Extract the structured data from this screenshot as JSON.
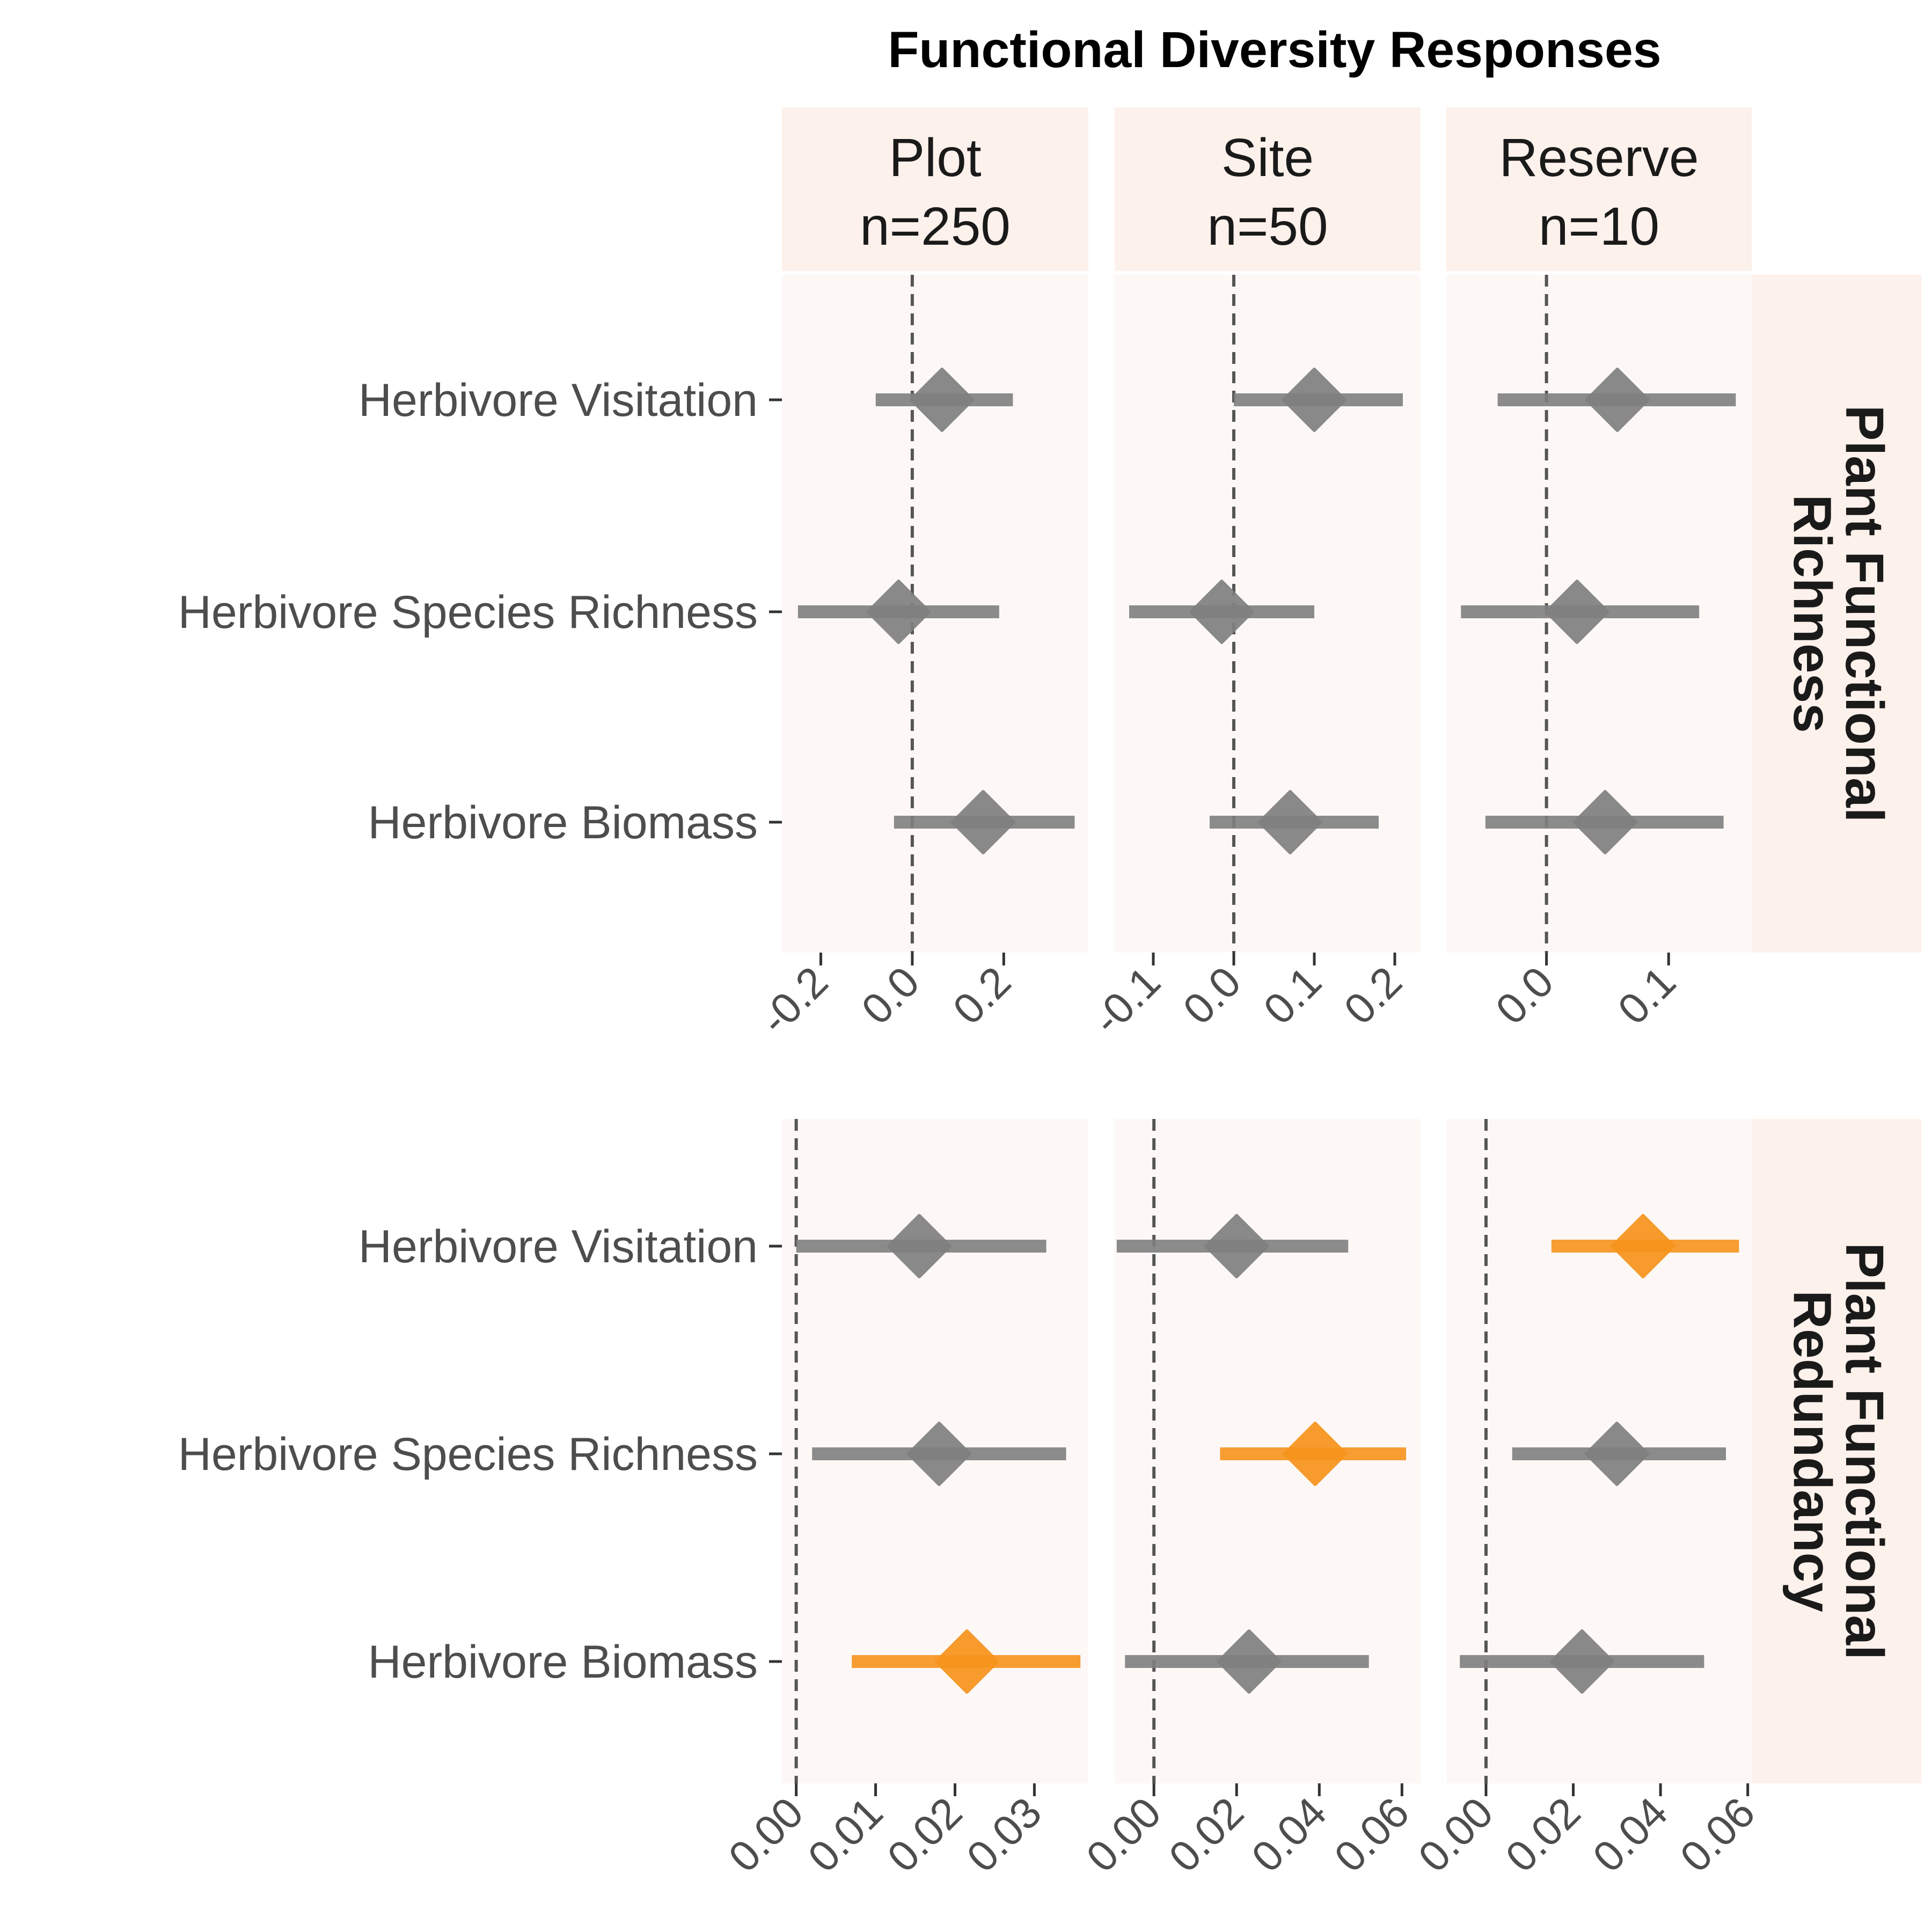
{
  "chart_data": {
    "type": "forest",
    "title": "Functional Diversity Responses",
    "columns": [
      {
        "label": "Plot",
        "n": "n=250"
      },
      {
        "label": "Site",
        "n": "n=50"
      },
      {
        "label": "Reserve",
        "n": "n=10"
      }
    ],
    "rows": [
      {
        "label": "Plant Functional Richness"
      },
      {
        "label": "Plant Functional Redundancy"
      }
    ],
    "categories": [
      "Herbivore Visitation",
      "Herbivore Species Richness",
      "Herbivore Biomass"
    ],
    "reference_line": 0,
    "colors": {
      "nonsignificant": "#808080",
      "significant": "#f7941d",
      "panel_bg": "#fdf8f6",
      "strip_bg": "#fdf1eb",
      "reference": "#555555"
    },
    "panels": [
      {
        "row": 0,
        "col": 0,
        "xlim": [
          -0.285,
          0.385
        ],
        "ticks": [
          -0.2,
          0.0,
          0.2
        ],
        "tick_labels": [
          "-0.2",
          "0.0",
          "0.2"
        ],
        "points": [
          {
            "category": "Herbivore Visitation",
            "estimate": 0.065,
            "lower": -0.08,
            "upper": 0.22,
            "significant": false
          },
          {
            "category": "Herbivore Species Richness",
            "estimate": -0.03,
            "lower": -0.25,
            "upper": 0.19,
            "significant": false
          },
          {
            "category": "Herbivore Biomass",
            "estimate": 0.155,
            "lower": -0.04,
            "upper": 0.355,
            "significant": false
          }
        ]
      },
      {
        "row": 0,
        "col": 1,
        "xlim": [
          -0.148,
          0.232
        ],
        "ticks": [
          -0.1,
          0.0,
          0.1,
          0.2
        ],
        "tick_labels": [
          "-0.1",
          "0.0",
          "0.1",
          "0.2"
        ],
        "points": [
          {
            "category": "Herbivore Visitation",
            "estimate": 0.1,
            "lower": 0.0,
            "upper": 0.21,
            "significant": false
          },
          {
            "category": "Herbivore Species Richness",
            "estimate": -0.015,
            "lower": -0.13,
            "upper": 0.1,
            "significant": false
          },
          {
            "category": "Herbivore Biomass",
            "estimate": 0.07,
            "lower": -0.03,
            "upper": 0.18,
            "significant": false
          }
        ]
      },
      {
        "row": 0,
        "col": 2,
        "xlim": [
          -0.082,
          0.168
        ],
        "ticks": [
          0.0,
          0.1
        ],
        "tick_labels": [
          "0.0",
          "0.1"
        ],
        "points": [
          {
            "category": "Herbivore Visitation",
            "estimate": 0.058,
            "lower": -0.04,
            "upper": 0.155,
            "significant": false
          },
          {
            "category": "Herbivore Species Richness",
            "estimate": 0.025,
            "lower": -0.07,
            "upper": 0.125,
            "significant": false
          },
          {
            "category": "Herbivore Biomass",
            "estimate": 0.048,
            "lower": -0.05,
            "upper": 0.145,
            "significant": false
          }
        ]
      },
      {
        "row": 1,
        "col": 0,
        "xlim": [
          -0.0018,
          0.0368
        ],
        "ticks": [
          0.0,
          0.01,
          0.02,
          0.03
        ],
        "tick_labels": [
          "0.00",
          "0.01",
          "0.02",
          "0.03"
        ],
        "points": [
          {
            "category": "Herbivore Visitation",
            "estimate": 0.0155,
            "lower": 0.0,
            "upper": 0.0315,
            "significant": false
          },
          {
            "category": "Herbivore Species Richness",
            "estimate": 0.018,
            "lower": 0.002,
            "upper": 0.034,
            "significant": false
          },
          {
            "category": "Herbivore Biomass",
            "estimate": 0.0215,
            "lower": 0.007,
            "upper": 0.0358,
            "significant": true
          }
        ]
      },
      {
        "row": 1,
        "col": 1,
        "xlim": [
          -0.0095,
          0.0645
        ],
        "ticks": [
          0.0,
          0.02,
          0.04,
          0.06
        ],
        "tick_labels": [
          "0.00",
          "0.02",
          "0.04",
          "0.06"
        ],
        "points": [
          {
            "category": "Herbivore Visitation",
            "estimate": 0.02,
            "lower": -0.009,
            "upper": 0.047,
            "significant": false
          },
          {
            "category": "Herbivore Species Richness",
            "estimate": 0.039,
            "lower": 0.016,
            "upper": 0.061,
            "significant": true
          },
          {
            "category": "Herbivore Biomass",
            "estimate": 0.023,
            "lower": -0.007,
            "upper": 0.052,
            "significant": false
          }
        ]
      },
      {
        "row": 1,
        "col": 2,
        "xlim": [
          -0.0091,
          0.0609
        ],
        "ticks": [
          0.0,
          0.02,
          0.04,
          0.06
        ],
        "tick_labels": [
          "0.00",
          "0.02",
          "0.04",
          "0.06"
        ],
        "points": [
          {
            "category": "Herbivore Visitation",
            "estimate": 0.036,
            "lower": 0.015,
            "upper": 0.058,
            "significant": true
          },
          {
            "category": "Herbivore Species Richness",
            "estimate": 0.03,
            "lower": 0.006,
            "upper": 0.055,
            "significant": false
          },
          {
            "category": "Herbivore Biomass",
            "estimate": 0.022,
            "lower": -0.006,
            "upper": 0.05,
            "significant": false
          }
        ]
      }
    ]
  }
}
